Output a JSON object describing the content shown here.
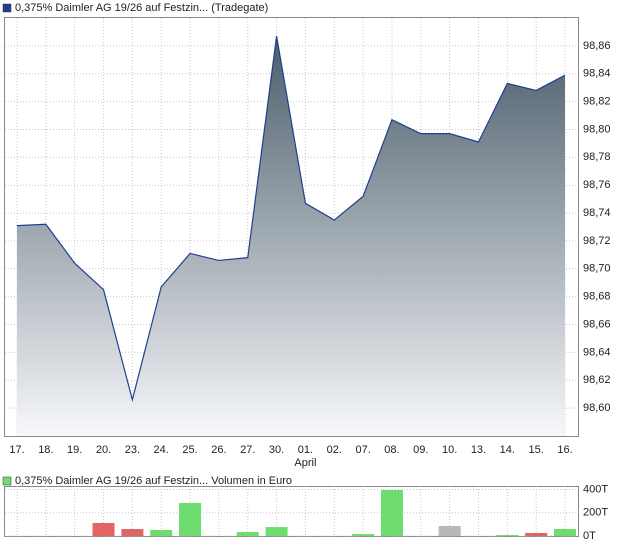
{
  "chart_data": [
    {
      "type": "area",
      "categories": [
        "17.",
        "18.",
        "19.",
        "20.",
        "23.",
        "24.",
        "25.",
        "26.",
        "27.",
        "30.",
        "01.",
        "02.",
        "07.",
        "08.",
        "09.",
        "10.",
        "13.",
        "14.",
        "15.",
        "16."
      ],
      "month_labels": [
        null,
        null,
        null,
        null,
        null,
        null,
        null,
        null,
        null,
        null,
        "April",
        null,
        null,
        null,
        null,
        null,
        null,
        null,
        null,
        null
      ],
      "series": [
        {
          "name": "0,375% Daimler AG 19/26 auf Festzin... (Tradegate)",
          "color": "#1f3f8f",
          "values": [
            98.731,
            98.732,
            98.704,
            98.685,
            98.606,
            98.687,
            98.711,
            98.706,
            98.708,
            98.867,
            98.747,
            98.735,
            98.752,
            98.807,
            98.797,
            98.797,
            98.791,
            98.833,
            98.828,
            98.839
          ]
        }
      ],
      "ylim": [
        98.58,
        98.88
      ],
      "yticks": [
        {
          "value": 98.6,
          "label": "98,60"
        },
        {
          "value": 98.62,
          "label": "98,62"
        },
        {
          "value": 98.64,
          "label": "98,64"
        },
        {
          "value": 98.66,
          "label": "98,66"
        },
        {
          "value": 98.68,
          "label": "98,68"
        },
        {
          "value": 98.7,
          "label": "98,70"
        },
        {
          "value": 98.72,
          "label": "98,72"
        },
        {
          "value": 98.74,
          "label": "98,74"
        },
        {
          "value": 98.76,
          "label": "98,76"
        },
        {
          "value": 98.78,
          "label": "98,78"
        },
        {
          "value": 98.8,
          "label": "98,80"
        },
        {
          "value": 98.82,
          "label": "98,82"
        },
        {
          "value": 98.84,
          "label": "98,84"
        },
        {
          "value": 98.86,
          "label": "98,86"
        }
      ],
      "grid": true
    },
    {
      "type": "bar",
      "series": [
        {
          "name": "0,375% Daimler AG 19/26 auf Festzin... Volumen in Euro",
          "color": "#6fdc6f",
          "values": [
            null,
            null,
            null,
            112,
            60,
            52,
            284,
            null,
            34,
            77,
            null,
            null,
            17,
            396,
            null,
            86,
            null,
            9,
            26,
            60
          ],
          "colors": [
            null,
            null,
            null,
            "#e06666",
            "#e06666",
            "#6fdc6f",
            "#6fdc6f",
            null,
            "#6fdc6f",
            "#6fdc6f",
            null,
            null,
            "#6fdc6f",
            "#6fdc6f",
            null,
            "#b8b8b8",
            null,
            "#6fdc6f",
            "#e06666",
            "#6fdc6f"
          ]
        }
      ],
      "ylim": [
        0,
        430
      ],
      "yticks": [
        {
          "value": 0,
          "label": "0T"
        },
        {
          "value": 200,
          "label": "200T"
        },
        {
          "value": 400,
          "label": "400T"
        }
      ],
      "grid": true
    }
  ]
}
